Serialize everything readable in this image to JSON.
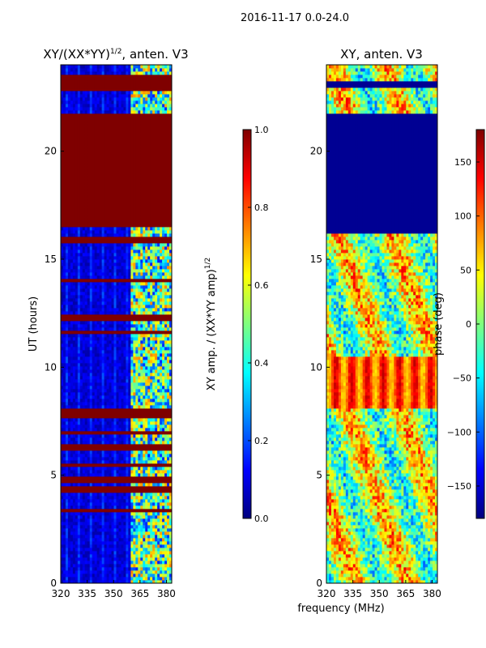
{
  "figure": {
    "suptitle": "2016-11-17 0.0-24.0",
    "xlabel": "frequency (MHz)"
  },
  "colors": {
    "jet": [
      "#00007f",
      "#0000ff",
      "#007fff",
      "#00ffff",
      "#7fff7f",
      "#ffff00",
      "#ff7f00",
      "#ff0000",
      "#7f0000"
    ],
    "low": "#00007f",
    "high": "#7f0000"
  },
  "chart_data": [
    {
      "type": "heatmap",
      "title_prefix": "XY/(XX*YY)",
      "title_exp": "1/2",
      "title_suffix": ", anten. V3",
      "xlabel": "",
      "ylabel": "UT (hours)",
      "xlim": [
        320,
        383
      ],
      "ylim": [
        0,
        24
      ],
      "xticks": [
        320,
        335,
        350,
        365,
        380
      ],
      "yticks": [
        0,
        5,
        10,
        15,
        20
      ],
      "colorbar": {
        "label_prefix": "XY amp. / (XX*YY amp)",
        "label_exp": "1/2",
        "range": [
          0.0,
          1.0
        ],
        "ticks": [
          "0.0",
          "0.2",
          "0.4",
          "0.6",
          "0.8",
          "1.0"
        ]
      },
      "saturated_hour_bands": [
        [
          0.45,
          0.5
        ],
        [
          1.6,
          1.65
        ],
        [
          3.3,
          3.45
        ],
        [
          4.2,
          4.5
        ],
        [
          4.7,
          4.95
        ],
        [
          5.4,
          5.55
        ],
        [
          6.1,
          6.5
        ],
        [
          6.9,
          7.0
        ],
        [
          7.7,
          8.05
        ],
        [
          8.5,
          8.55
        ],
        [
          11.5,
          11.7
        ],
        [
          12.1,
          12.4
        ],
        [
          14.0,
          14.1
        ],
        [
          14.5,
          14.55
        ],
        [
          15.8,
          16.0
        ],
        [
          16.5,
          21.7
        ],
        [
          22.8,
          23.5
        ]
      ],
      "bright_frequency_range": [
        360,
        383
      ]
    },
    {
      "type": "heatmap",
      "title": "XY, anten. V3",
      "xlabel": "",
      "ylabel": "",
      "xlim": [
        320,
        383
      ],
      "ylim": [
        0,
        24
      ],
      "xticks": [
        320,
        335,
        350,
        365,
        380
      ],
      "yticks": [
        0,
        5,
        10,
        15,
        20
      ],
      "colorbar": {
        "label": "phase (deg)",
        "range": [
          -180,
          180
        ],
        "ticks": [
          "150",
          "100",
          "50",
          "0",
          "−50",
          "−100",
          "−150"
        ]
      },
      "uniform_hour_bands": [
        [
          16.2,
          21.7
        ],
        [
          22.9,
          23.3
        ]
      ],
      "striped_hour_band": [
        8.1,
        10.5
      ]
    }
  ]
}
